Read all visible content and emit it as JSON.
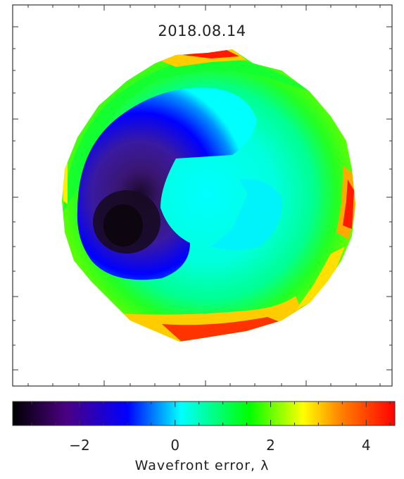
{
  "chart_data": [
    {
      "type": "heatmap",
      "title": "2018.08.14",
      "description_of_field": "annular wavefront error map",
      "grid": false
    },
    {
      "type": "colorbar",
      "xlabel": "Wavefront error, λ",
      "xlim": [
        -3.4,
        4.6
      ],
      "ticks": [
        -2,
        0,
        2,
        4
      ],
      "tick_labels": [
        "−2",
        "0",
        "2",
        "4"
      ],
      "colormap": [
        "#000000",
        "#4b0082",
        "#0000ff",
        "#00ffff",
        "#00ff00",
        "#ffff00",
        "#ff8000",
        "#ff0000"
      ]
    }
  ]
}
